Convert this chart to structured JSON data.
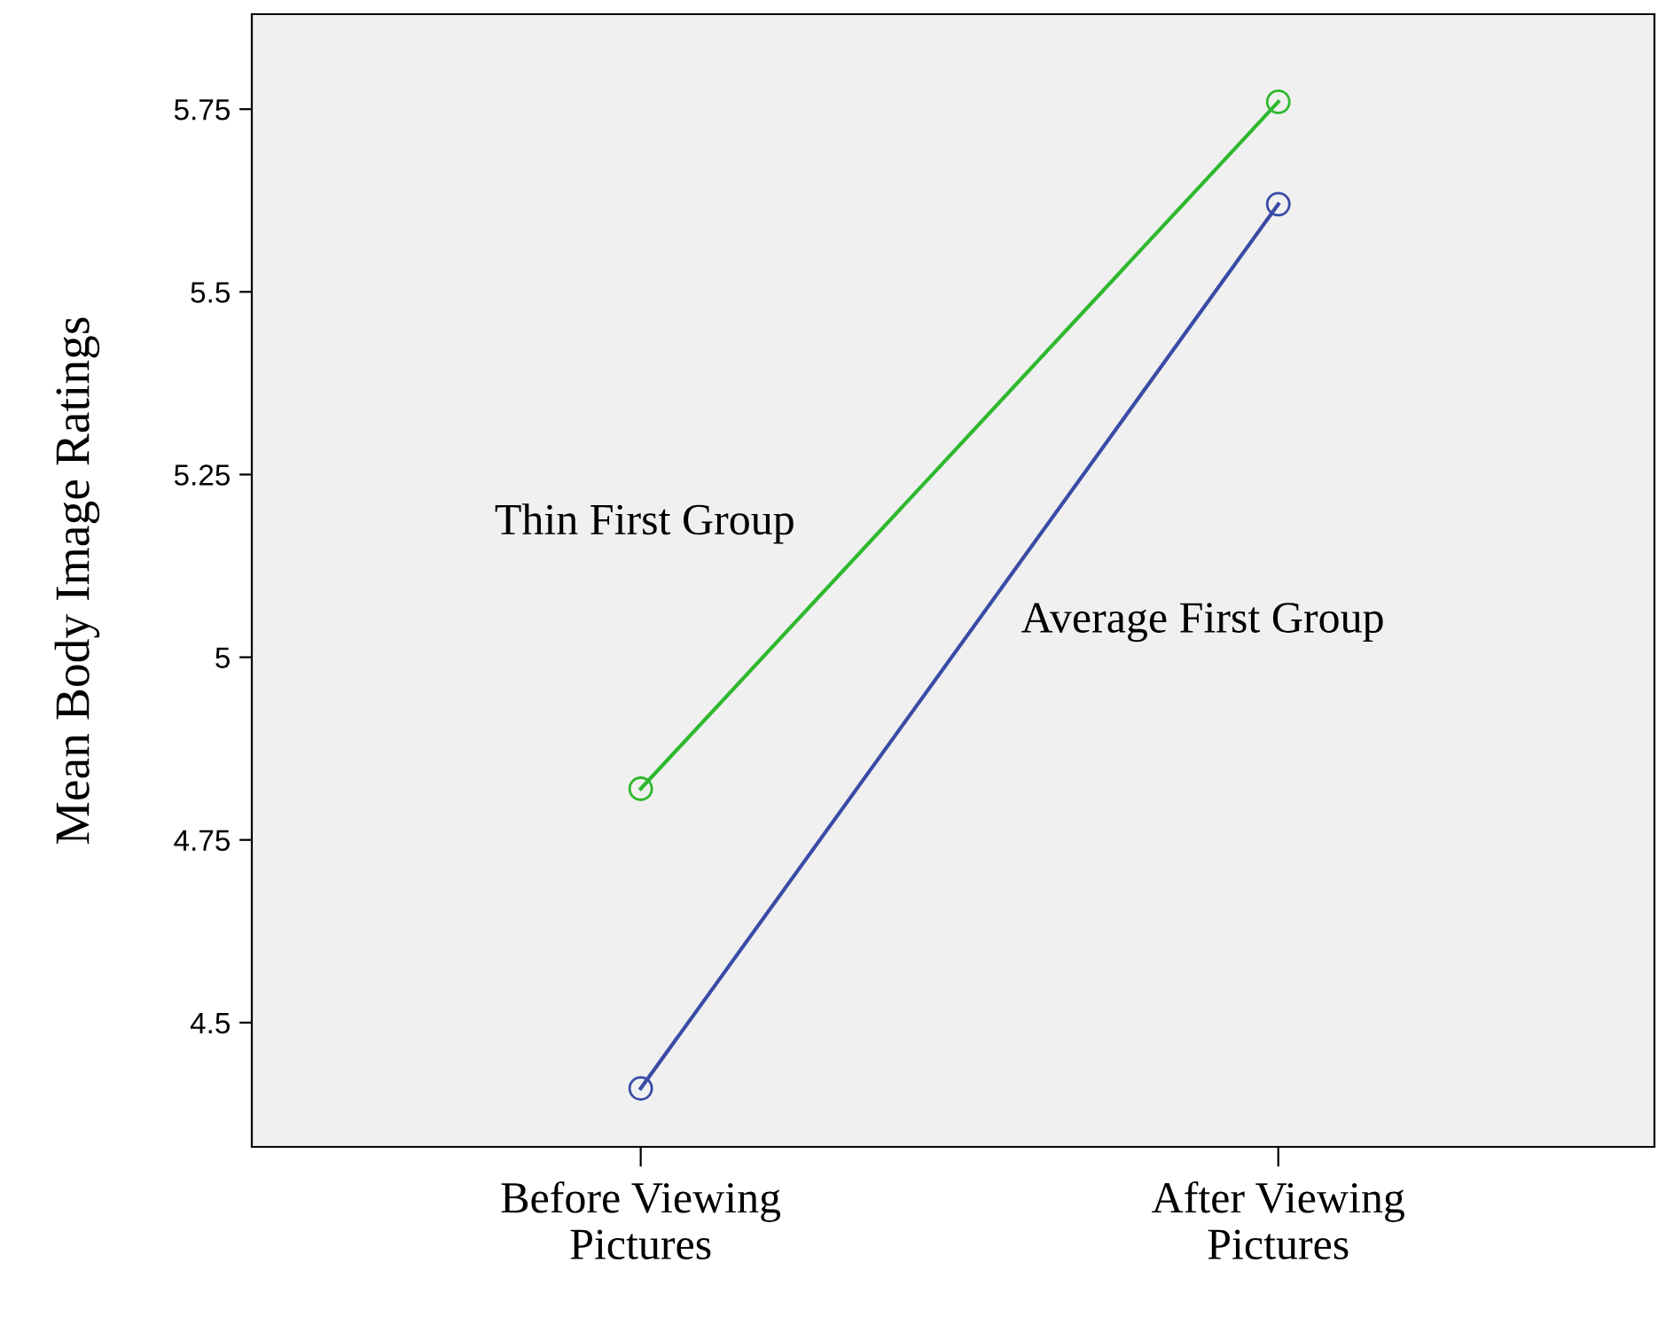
{
  "chart_data": {
    "type": "line",
    "ylabel": "Mean Body Image Ratings",
    "categories": [
      "Before Viewing\nPictures",
      "After Viewing\nPictures"
    ],
    "series": [
      {
        "name": "Thin First Group",
        "color": "#2eb82e",
        "values": [
          4.82,
          5.76
        ]
      },
      {
        "name": "Average First Group",
        "color": "#3a4ba6",
        "values": [
          4.41,
          5.62
        ]
      }
    ],
    "ylim": [
      4.33,
      5.88
    ],
    "yticks": [
      4.5,
      4.75,
      5,
      5.25,
      5.5,
      5.75
    ],
    "grid": false,
    "legend": false,
    "marker": "circle",
    "line_style": "solid"
  }
}
